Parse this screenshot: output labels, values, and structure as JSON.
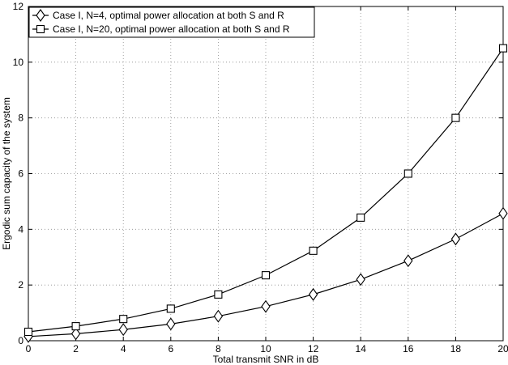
{
  "chart_data": {
    "type": "line",
    "title": "",
    "xlabel": "Total transmit SNR in dB",
    "ylabel": "Ergodic sum capacity of the system",
    "xlim": [
      0,
      20
    ],
    "ylim": [
      0,
      12
    ],
    "xticks": [
      0,
      2,
      4,
      6,
      8,
      10,
      12,
      14,
      16,
      18,
      20
    ],
    "yticks": [
      0,
      2,
      4,
      6,
      8,
      10,
      12
    ],
    "grid": true,
    "legend_position": "top-left",
    "x": [
      0,
      2,
      4,
      6,
      8,
      10,
      12,
      14,
      16,
      18,
      20
    ],
    "series": [
      {
        "name": "Case I, N=4, optimal power allocation at both S and R",
        "marker": "diamond",
        "values": [
          0.15,
          0.25,
          0.4,
          0.6,
          0.88,
          1.23,
          1.66,
          2.2,
          2.87,
          3.65,
          4.57
        ]
      },
      {
        "name": "Case I, N=20, optimal power allocation at both S and R",
        "marker": "square",
        "values": [
          0.32,
          0.52,
          0.78,
          1.15,
          1.66,
          2.35,
          3.23,
          4.42,
          6.0,
          8.0,
          10.5
        ]
      }
    ],
    "colors": {
      "line": "#000000",
      "grid": "#8c8c8c",
      "background": "#ffffff"
    }
  }
}
